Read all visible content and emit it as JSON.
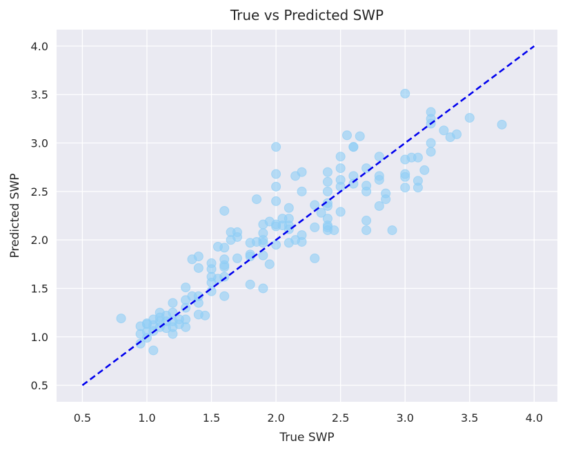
{
  "chart_data": {
    "type": "scatter",
    "title": "True vs Predicted SWP",
    "xlabel": "True SWP",
    "ylabel": "Predicted SWP",
    "xlim": [
      0.3,
      4.18
    ],
    "ylim": [
      0.33,
      4.17
    ],
    "xticks": [
      "0.5",
      "1.0",
      "1.5",
      "2.0",
      "2.5",
      "3.0",
      "3.5",
      "4.0"
    ],
    "yticks": [
      "0.5",
      "1.0",
      "1.5",
      "2.0",
      "2.5",
      "3.0",
      "3.5",
      "4.0"
    ],
    "grid": true,
    "background": "#eaeaf2",
    "point_color": "#8ecdf5",
    "line_color": "#0000ee",
    "reference_line": {
      "style": "dashed",
      "x": [
        0.5,
        4.0
      ],
      "y": [
        0.5,
        4.0
      ]
    },
    "points": [
      [
        0.8,
        1.19
      ],
      [
        0.95,
        0.93
      ],
      [
        0.95,
        1.03
      ],
      [
        0.95,
        1.11
      ],
      [
        1.0,
        0.99
      ],
      [
        1.0,
        1.05
      ],
      [
        1.0,
        1.13
      ],
      [
        1.0,
        1.14
      ],
      [
        1.05,
        0.86
      ],
      [
        1.05,
        1.06
      ],
      [
        1.05,
        1.12
      ],
      [
        1.05,
        1.18
      ],
      [
        1.1,
        1.1
      ],
      [
        1.1,
        1.16
      ],
      [
        1.1,
        1.2
      ],
      [
        1.1,
        1.25
      ],
      [
        1.15,
        1.09
      ],
      [
        1.15,
        1.16
      ],
      [
        1.15,
        1.22
      ],
      [
        1.2,
        1.03
      ],
      [
        1.2,
        1.1
      ],
      [
        1.2,
        1.16
      ],
      [
        1.2,
        1.25
      ],
      [
        1.2,
        1.35
      ],
      [
        1.25,
        1.13
      ],
      [
        1.25,
        1.18
      ],
      [
        1.3,
        1.1
      ],
      [
        1.3,
        1.18
      ],
      [
        1.3,
        1.3
      ],
      [
        1.3,
        1.38
      ],
      [
        1.3,
        1.51
      ],
      [
        1.35,
        1.42
      ],
      [
        1.35,
        1.8
      ],
      [
        1.4,
        1.23
      ],
      [
        1.4,
        1.35
      ],
      [
        1.4,
        1.42
      ],
      [
        1.4,
        1.71
      ],
      [
        1.4,
        1.83
      ],
      [
        1.45,
        1.22
      ],
      [
        1.5,
        1.47
      ],
      [
        1.5,
        1.56
      ],
      [
        1.5,
        1.62
      ],
      [
        1.5,
        1.7
      ],
      [
        1.5,
        1.76
      ],
      [
        1.55,
        1.6
      ],
      [
        1.55,
        1.93
      ],
      [
        1.6,
        1.42
      ],
      [
        1.6,
        1.62
      ],
      [
        1.6,
        1.72
      ],
      [
        1.6,
        1.74
      ],
      [
        1.6,
        1.8
      ],
      [
        1.6,
        1.92
      ],
      [
        1.6,
        2.3
      ],
      [
        1.65,
        2.0
      ],
      [
        1.65,
        2.08
      ],
      [
        1.7,
        1.81
      ],
      [
        1.7,
        2.03
      ],
      [
        1.7,
        2.08
      ],
      [
        1.8,
        1.54
      ],
      [
        1.8,
        1.83
      ],
      [
        1.8,
        1.85
      ],
      [
        1.8,
        1.97
      ],
      [
        1.85,
        1.98
      ],
      [
        1.85,
        2.42
      ],
      [
        1.9,
        1.5
      ],
      [
        1.9,
        1.84
      ],
      [
        1.9,
        1.97
      ],
      [
        1.9,
        2.0
      ],
      [
        1.9,
        2.07
      ],
      [
        1.9,
        2.16
      ],
      [
        1.95,
        1.75
      ],
      [
        1.95,
        2.19
      ],
      [
        2.0,
        1.95
      ],
      [
        2.0,
        2.14
      ],
      [
        2.0,
        2.16
      ],
      [
        2.0,
        2.4
      ],
      [
        2.0,
        2.55
      ],
      [
        2.0,
        2.68
      ],
      [
        2.0,
        2.96
      ],
      [
        2.05,
        2.15
      ],
      [
        2.05,
        2.22
      ],
      [
        2.1,
        1.97
      ],
      [
        2.1,
        2.11
      ],
      [
        2.1,
        2.15
      ],
      [
        2.1,
        2.22
      ],
      [
        2.1,
        2.33
      ],
      [
        2.15,
        2.0
      ],
      [
        2.15,
        2.66
      ],
      [
        2.2,
        1.98
      ],
      [
        2.2,
        2.05
      ],
      [
        2.2,
        2.5
      ],
      [
        2.2,
        2.7
      ],
      [
        2.3,
        1.81
      ],
      [
        2.3,
        2.13
      ],
      [
        2.3,
        2.36
      ],
      [
        2.35,
        2.28
      ],
      [
        2.4,
        2.1
      ],
      [
        2.4,
        2.13
      ],
      [
        2.4,
        2.15
      ],
      [
        2.4,
        2.22
      ],
      [
        2.4,
        2.35
      ],
      [
        2.4,
        2.38
      ],
      [
        2.4,
        2.5
      ],
      [
        2.4,
        2.6
      ],
      [
        2.4,
        2.7
      ],
      [
        2.45,
        2.1
      ],
      [
        2.5,
        2.29
      ],
      [
        2.5,
        2.55
      ],
      [
        2.5,
        2.62
      ],
      [
        2.5,
        2.74
      ],
      [
        2.5,
        2.86
      ],
      [
        2.55,
        3.08
      ],
      [
        2.6,
        2.58
      ],
      [
        2.6,
        2.66
      ],
      [
        2.6,
        2.96
      ],
      [
        2.6,
        2.96
      ],
      [
        2.65,
        3.07
      ],
      [
        2.7,
        2.1
      ],
      [
        2.7,
        2.2
      ],
      [
        2.7,
        2.5
      ],
      [
        2.7,
        2.56
      ],
      [
        2.7,
        2.74
      ],
      [
        2.8,
        2.35
      ],
      [
        2.8,
        2.62
      ],
      [
        2.8,
        2.66
      ],
      [
        2.8,
        2.86
      ],
      [
        2.85,
        2.42
      ],
      [
        2.85,
        2.48
      ],
      [
        2.9,
        2.1
      ],
      [
        3.0,
        2.54
      ],
      [
        3.0,
        2.65
      ],
      [
        3.0,
        2.68
      ],
      [
        3.0,
        2.83
      ],
      [
        3.0,
        3.51
      ],
      [
        3.05,
        2.85
      ],
      [
        3.1,
        2.54
      ],
      [
        3.1,
        2.61
      ],
      [
        3.1,
        2.85
      ],
      [
        3.15,
        2.72
      ],
      [
        3.2,
        2.91
      ],
      [
        3.2,
        3.0
      ],
      [
        3.2,
        3.2
      ],
      [
        3.2,
        3.25
      ],
      [
        3.2,
        3.32
      ],
      [
        3.3,
        3.13
      ],
      [
        3.35,
        3.06
      ],
      [
        3.4,
        3.09
      ],
      [
        3.5,
        3.26
      ],
      [
        3.75,
        3.19
      ]
    ]
  }
}
